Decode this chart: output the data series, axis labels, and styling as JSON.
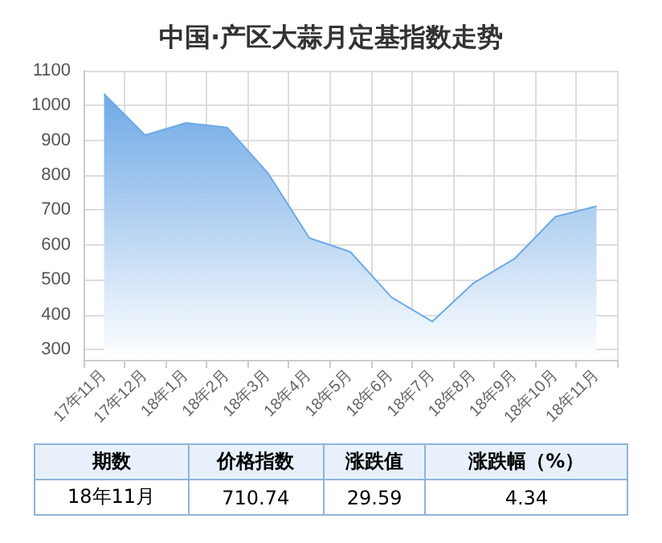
{
  "chart_data": {
    "type": "area",
    "title": "中国·产区大蒜月定基指数走势",
    "categories": [
      "17年11月",
      "17年12月",
      "18年1月",
      "18年2月",
      "18年3月",
      "18年4月",
      "18年5月",
      "18年6月",
      "18年7月",
      "18年8月",
      "18年9月",
      "18年10月",
      "18年11月"
    ],
    "series": [
      {
        "color": "#6fa9e6",
        "values": [
          1033,
          915,
          950,
          937,
          805,
          620,
          580,
          450,
          380,
          490,
          560,
          681,
          711
        ]
      }
    ],
    "ylim": [
      270,
      1100
    ],
    "yticks": [
      300,
      400,
      500,
      600,
      700,
      800,
      900,
      1000,
      1100
    ],
    "grid": true,
    "marker": "none",
    "annotations": [
      "期数",
      "价格指数",
      "涨跌值",
      "涨跌幅（%）",
      "18年11月",
      "710.74",
      "29.59",
      "4.34"
    ]
  }
}
